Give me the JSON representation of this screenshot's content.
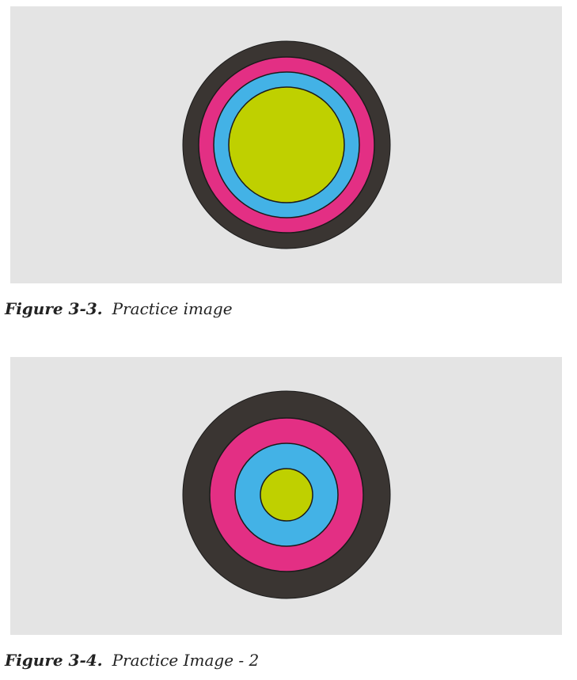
{
  "figures": [
    {
      "label": "Figure 3-3.",
      "caption": "Practice image",
      "rings": [
        {
          "name": "outer-ring",
          "color": "#3a3532"
        },
        {
          "name": "second-ring",
          "color": "#e32f84"
        },
        {
          "name": "third-ring",
          "color": "#43b2e6"
        },
        {
          "name": "center-circle",
          "color": "#bfd000"
        }
      ],
      "background_color": "#e4e4e4"
    },
    {
      "label": "Figure 3-4.",
      "caption": "Practice Image - 2",
      "rings": [
        {
          "name": "outer-ring",
          "color": "#3a3532"
        },
        {
          "name": "second-ring",
          "color": "#e32f84"
        },
        {
          "name": "third-ring",
          "color": "#43b2e6"
        },
        {
          "name": "center-circle",
          "color": "#bfd000"
        }
      ],
      "background_color": "#e4e4e4"
    }
  ]
}
